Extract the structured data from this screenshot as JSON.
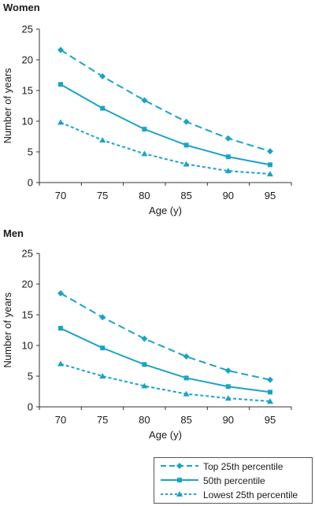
{
  "chart_data": [
    {
      "type": "line",
      "title": "Women",
      "xlabel": "Age (y)",
      "ylabel": "Number of years",
      "x": [
        70,
        75,
        80,
        85,
        90,
        95
      ],
      "ylim": [
        0,
        25
      ],
      "yticks": [
        0,
        5,
        10,
        15,
        20,
        25
      ],
      "series": [
        {
          "name": "Top 25th percentile",
          "values": [
            21.6,
            17.3,
            13.4,
            9.9,
            7.2,
            5.1
          ]
        },
        {
          "name": "50th percentile",
          "values": [
            16.0,
            12.1,
            8.7,
            6.1,
            4.2,
            2.9
          ]
        },
        {
          "name": "Lowest 25th percentile",
          "values": [
            9.8,
            6.9,
            4.7,
            3.0,
            1.9,
            1.4
          ]
        }
      ]
    },
    {
      "type": "line",
      "title": "Men",
      "xlabel": "Age (y)",
      "ylabel": "Number of years",
      "x": [
        70,
        75,
        80,
        85,
        90,
        95
      ],
      "ylim": [
        0,
        25
      ],
      "yticks": [
        0,
        5,
        10,
        15,
        20,
        25
      ],
      "series": [
        {
          "name": "Top 25th percentile",
          "values": [
            18.5,
            14.6,
            11.1,
            8.2,
            5.9,
            4.4
          ]
        },
        {
          "name": "50th percentile",
          "values": [
            12.8,
            9.6,
            6.9,
            4.7,
            3.3,
            2.4
          ]
        },
        {
          "name": "Lowest 25th percentile",
          "values": [
            7.0,
            5.0,
            3.4,
            2.1,
            1.4,
            0.9
          ]
        }
      ]
    }
  ],
  "style": {
    "line_color": "#1aa3c8",
    "axis_color": "#333333",
    "markers": [
      "diamond-marker",
      "square-marker",
      "triangle-marker"
    ],
    "dashes": [
      "long-dash",
      "solid",
      "short-dash"
    ]
  },
  "legend": {
    "items": [
      "Top 25th percentile",
      "50th percentile",
      "Lowest 25th percentile"
    ]
  }
}
